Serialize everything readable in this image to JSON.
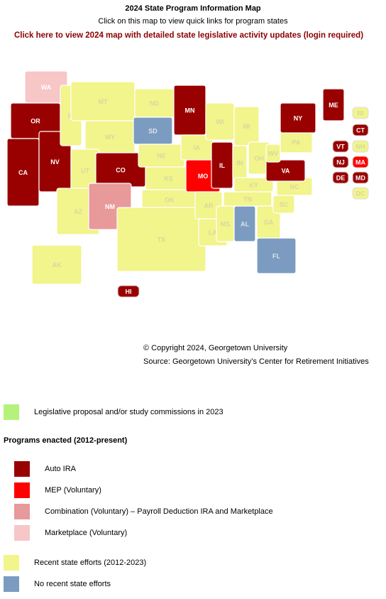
{
  "header": {
    "title": "2024 State Program Information Map",
    "subtitle": "Click on this map to view quick links for program states",
    "link": "Click here to view 2024 map with detailed state legislative activity updates (login required)"
  },
  "legend": {
    "items": [
      {
        "label": "Legislative proposal and/or study commissions in 2023",
        "color": "#b5f27c",
        "text_color": "#ffffff"
      },
      {
        "label": "Auto IRA",
        "color": "#990000",
        "text_color": "#ffffff"
      },
      {
        "label": "MEP (Voluntary)",
        "color": "#ff0000",
        "text_color": "#ffffff"
      },
      {
        "label": "Combination (Voluntary) – Payroll Deduction IRA and Marketplace",
        "color": "#e8999a",
        "text_color": "#ffffff"
      },
      {
        "label": "Marketplace (Voluntary)",
        "color": "#f7c6c7",
        "text_color": "#ffffff"
      },
      {
        "label": "Recent state efforts (2012-2023)",
        "color": "#f2f48c",
        "text_color": "#d8d8a0"
      },
      {
        "label": "No recent state efforts",
        "color": "#7b9cc0",
        "text_color": "#dde4ee"
      }
    ],
    "heading": "Programs enacted (2012-present)"
  },
  "states": [
    {
      "label": "WA",
      "category": 4
    },
    {
      "label": "OR",
      "category": 1
    },
    {
      "label": "CA",
      "category": 1
    },
    {
      "label": "NV",
      "category": 1
    },
    {
      "label": "ID",
      "category": 5
    },
    {
      "label": "MT",
      "category": 5
    },
    {
      "label": "WY",
      "category": 5
    },
    {
      "label": "UT",
      "category": 5
    },
    {
      "label": "AZ",
      "category": 5
    },
    {
      "label": "CO",
      "category": 1
    },
    {
      "label": "NM",
      "category": 3
    },
    {
      "label": "ND",
      "category": 5
    },
    {
      "label": "SD",
      "category": 6
    },
    {
      "label": "NE",
      "category": 5
    },
    {
      "label": "KS",
      "category": 5
    },
    {
      "label": "OK",
      "category": 5
    },
    {
      "label": "TX",
      "category": 5
    },
    {
      "label": "MN",
      "category": 1
    },
    {
      "label": "IA",
      "category": 5
    },
    {
      "label": "MO",
      "category": 2
    },
    {
      "label": "AR",
      "category": 5
    },
    {
      "label": "LA",
      "category": 5
    },
    {
      "label": "WI",
      "category": 5
    },
    {
      "label": "IL",
      "category": 1
    },
    {
      "label": "MI",
      "category": 5
    },
    {
      "label": "IN",
      "category": 5
    },
    {
      "label": "OH",
      "category": 5
    },
    {
      "label": "KY",
      "category": 5
    },
    {
      "label": "TN",
      "category": 5
    },
    {
      "label": "MS",
      "category": 5
    },
    {
      "label": "AL",
      "category": 6
    },
    {
      "label": "GA",
      "category": 5
    },
    {
      "label": "FL",
      "category": 6
    },
    {
      "label": "SC",
      "category": 5
    },
    {
      "label": "NC",
      "category": 5
    },
    {
      "label": "VA",
      "category": 1
    },
    {
      "label": "WV",
      "category": 5
    },
    {
      "label": "PA",
      "category": 5
    },
    {
      "label": "NY",
      "category": 1
    },
    {
      "label": "ME",
      "category": 1
    },
    {
      "label": "AK",
      "category": 5
    },
    {
      "label": "HI",
      "category": 1
    },
    {
      "label": "RI",
      "category": 5
    },
    {
      "label": "CT",
      "category": 1
    },
    {
      "label": "VT",
      "category": 1
    },
    {
      "label": "NH",
      "category": 5
    },
    {
      "label": "NJ",
      "category": 1
    },
    {
      "label": "MA",
      "category": 2
    },
    {
      "label": "DE",
      "category": 1
    },
    {
      "label": "MD",
      "category": 1
    },
    {
      "label": "DC",
      "category": 5
    }
  ],
  "footer": {
    "copyright": "© Copyright 2024, Georgetown University",
    "source": "Source: Georgetown University’s Center for Retirement Initiatives"
  }
}
